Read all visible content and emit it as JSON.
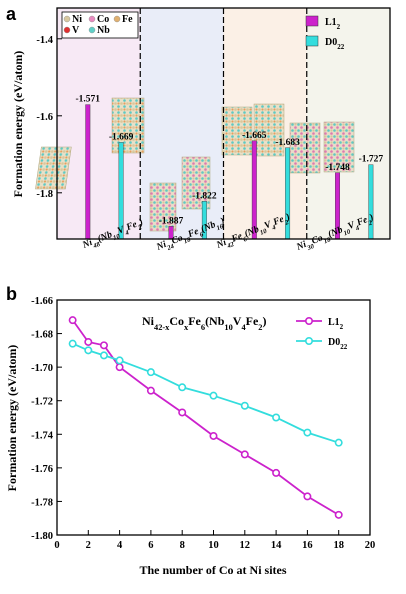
{
  "panel_a_label": "a",
  "panel_b_label": "b",
  "element_legend": [
    {
      "symbol": "Ni",
      "color": "#d8c8a0"
    },
    {
      "symbol": "Co",
      "color": "#e88ac0"
    },
    {
      "symbol": "Fe",
      "color": "#e0b070"
    },
    {
      "symbol": "V",
      "color": "#e03030"
    },
    {
      "symbol": "Nb",
      "color": "#60d0c8"
    }
  ],
  "chart_data": [
    {
      "type": "bar",
      "ylabel": "Formation energy (eV/atom)",
      "ylim": [
        -1.92,
        -1.32
      ],
      "yticks": [
        -1.4,
        -1.6,
        -1.8
      ],
      "categories": [
        {
          "main": "Ni",
          "sub": "48",
          "main2": "(Nb",
          "sub2": "10",
          "main3": "V",
          "sub3": "4",
          "main4": "Fe",
          "sub4": "2",
          "tail": ")"
        },
        {
          "main": "Ni",
          "sub": "24",
          "main2": "Co",
          "sub2": "18",
          "main3": "Fe",
          "sub3": "6",
          "main4": "(Nb",
          "sub4": "16",
          "tail": ")"
        },
        {
          "main": "Ni",
          "sub": "42",
          "main2": "Fe",
          "sub2": "6",
          "main3": "(Nb",
          "sub3": "10",
          "main4": "V",
          "sub4": "4",
          "main5": "Fe",
          "sub5": "2",
          "tail": ")"
        },
        {
          "main": "Ni",
          "sub": "30",
          "main2": "Co",
          "sub2": "18",
          "main3": "(Nb",
          "sub3": "10",
          "main4": "V",
          "sub4": "4",
          "main5": "Fe",
          "sub5": "2",
          "tail": ")"
        }
      ],
      "region_colors": [
        "#f7e9f5",
        "#e9edf8",
        "#fbf0e6",
        "#f4f4ec"
      ],
      "series": [
        {
          "name": "L1",
          "name_sub": "2",
          "color": "#cc22cc",
          "values": [
            -1.571,
            -1.887,
            -1.665,
            -1.748
          ]
        },
        {
          "name": "D0",
          "name_sub": "22",
          "color": "#33dddd",
          "values": [
            -1.669,
            -1.822,
            -1.683,
            -1.727
          ]
        }
      ],
      "bar_labels": {
        "L1": [
          "-1.571",
          "-1.887",
          "-1.665",
          "-1.748"
        ],
        "D0": [
          "-1.669",
          "-1.822",
          "-1.683",
          "-1.727"
        ]
      },
      "legend_placement": "top-right"
    },
    {
      "type": "line",
      "title": {
        "a": "Ni",
        "a_sub": "42-x",
        "b": "Co",
        "b_sub": "x",
        "c": "Fe",
        "c_sub": "6",
        "d": "(Nb",
        "d_sub": "10",
        "e": "V",
        "e_sub": "4",
        "f": "Fe",
        "f_sub": "2",
        "g": ")"
      },
      "xlabel": "The number of Co at Ni sites",
      "ylabel": "Formation energy (eV/atom)",
      "xlim": [
        0,
        20
      ],
      "ylim": [
        -1.8,
        -1.66
      ],
      "xticks": [
        0,
        2,
        4,
        6,
        8,
        10,
        12,
        14,
        16,
        18,
        20
      ],
      "yticks": [
        -1.66,
        -1.68,
        -1.7,
        -1.72,
        -1.74,
        -1.76,
        -1.78,
        -1.8
      ],
      "ytick_labels": [
        "-1.66",
        "-1.68",
        "-1.70",
        "-1.72",
        "-1.74",
        "-1.76",
        "-1.78",
        "-1.80"
      ],
      "series": [
        {
          "name": "L1",
          "name_sub": "2",
          "color": "#cc22cc",
          "x": [
            1,
            2,
            3,
            4,
            6,
            8,
            10,
            12,
            14,
            16,
            18
          ],
          "y": [
            -1.672,
            -1.685,
            -1.687,
            -1.7,
            -1.714,
            -1.727,
            -1.741,
            -1.752,
            -1.763,
            -1.777,
            -1.788
          ]
        },
        {
          "name": "D0",
          "name_sub": "22",
          "color": "#33dddd",
          "x": [
            1,
            2,
            3,
            4,
            6,
            8,
            10,
            12,
            14,
            16,
            18
          ],
          "y": [
            -1.686,
            -1.69,
            -1.693,
            -1.696,
            -1.703,
            -1.712,
            -1.717,
            -1.723,
            -1.73,
            -1.739,
            -1.745
          ]
        }
      ],
      "grid": false,
      "legend_placement": "top-right"
    }
  ]
}
